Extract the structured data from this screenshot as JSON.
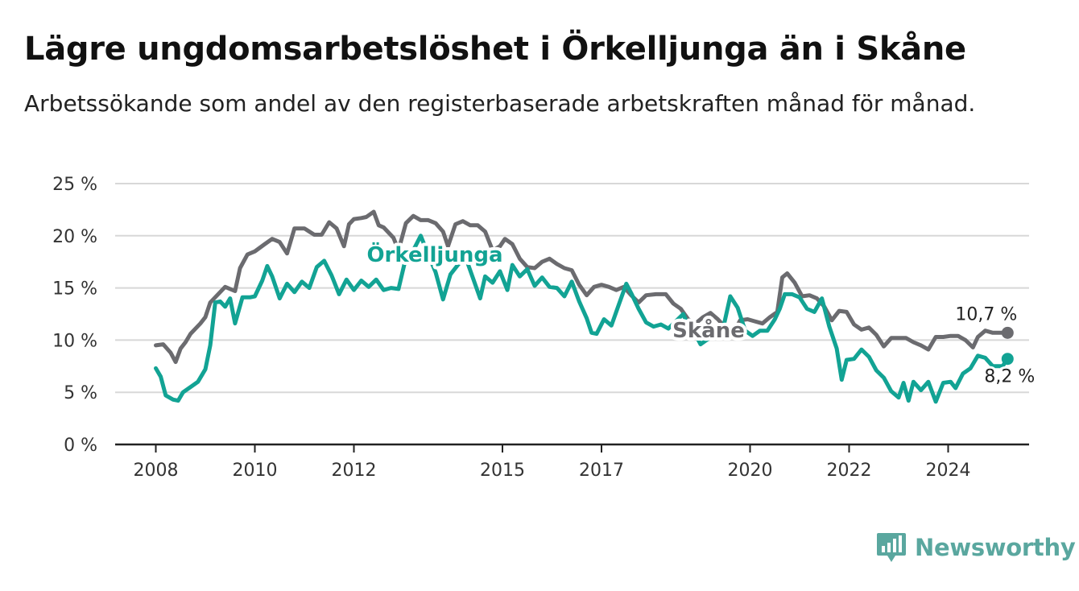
{
  "title": "Lägre ungdomsarbetslöshet i Örkelljunga än i Skåne",
  "subtitle": "Arbetssökande som andel av den registerbaserade arbetskraften månad för månad.",
  "brand": "Newsworthy",
  "colors": {
    "skane": "#6b6b6f",
    "orkelljunga": "#12a394",
    "grid": "#d8d8d8",
    "axis": "#222222",
    "brand": "#5aa79f"
  },
  "chart_data": {
    "type": "line",
    "y_ticks": [
      "0 %",
      "5 %",
      "10 %",
      "15 %",
      "20 %",
      "25 %"
    ],
    "ylim": [
      0,
      25
    ],
    "xlim": [
      2008,
      2025.7
    ],
    "x_ticks": [
      {
        "label": "2008",
        "value": 2008.0
      },
      {
        "label": "2010",
        "value": 2010.0
      },
      {
        "label": "2012",
        "value": 2012.0
      },
      {
        "label": "2015",
        "value": 2015.0
      },
      {
        "label": "2017",
        "value": 2017.0
      },
      {
        "label": "2020",
        "value": 2020.0
      },
      {
        "label": "2022",
        "value": 2022.0
      },
      {
        "label": "2024",
        "value": 2024.0
      }
    ],
    "grid": true,
    "series": [
      {
        "name": "Skåne",
        "end_label": "10,7 %",
        "points": [
          [
            2008.0,
            9.5
          ],
          [
            2008.15,
            9.6
          ],
          [
            2008.3,
            8.8
          ],
          [
            2008.4,
            7.9
          ],
          [
            2008.5,
            9.2
          ],
          [
            2008.6,
            9.8
          ],
          [
            2008.7,
            10.6
          ],
          [
            2008.9,
            11.6
          ],
          [
            2009.0,
            12.2
          ],
          [
            2009.1,
            13.6
          ],
          [
            2009.3,
            14.6
          ],
          [
            2009.4,
            15.1
          ],
          [
            2009.6,
            14.7
          ],
          [
            2009.7,
            16.9
          ],
          [
            2009.85,
            18.2
          ],
          [
            2010.0,
            18.5
          ],
          [
            2010.2,
            19.2
          ],
          [
            2010.35,
            19.7
          ],
          [
            2010.5,
            19.4
          ],
          [
            2010.65,
            18.3
          ],
          [
            2010.8,
            20.7
          ],
          [
            2011.0,
            20.7
          ],
          [
            2011.2,
            20.1
          ],
          [
            2011.35,
            20.1
          ],
          [
            2011.5,
            21.3
          ],
          [
            2011.65,
            20.7
          ],
          [
            2011.8,
            19.0
          ],
          [
            2011.9,
            21.1
          ],
          [
            2012.0,
            21.6
          ],
          [
            2012.15,
            21.7
          ],
          [
            2012.25,
            21.8
          ],
          [
            2012.4,
            22.3
          ],
          [
            2012.5,
            21.0
          ],
          [
            2012.6,
            20.8
          ],
          [
            2012.8,
            19.8
          ],
          [
            2012.9,
            18.6
          ],
          [
            2013.05,
            21.2
          ],
          [
            2013.2,
            21.9
          ],
          [
            2013.35,
            21.5
          ],
          [
            2013.5,
            21.5
          ],
          [
            2013.65,
            21.2
          ],
          [
            2013.8,
            20.4
          ],
          [
            2013.9,
            19.0
          ],
          [
            2014.05,
            21.1
          ],
          [
            2014.2,
            21.4
          ],
          [
            2014.35,
            21.0
          ],
          [
            2014.5,
            21.0
          ],
          [
            2014.65,
            20.4
          ],
          [
            2014.8,
            18.6
          ],
          [
            2014.95,
            19.0
          ],
          [
            2015.05,
            19.7
          ],
          [
            2015.2,
            19.2
          ],
          [
            2015.35,
            17.8
          ],
          [
            2015.5,
            17.0
          ],
          [
            2015.65,
            16.9
          ],
          [
            2015.8,
            17.5
          ],
          [
            2015.95,
            17.8
          ],
          [
            2016.1,
            17.3
          ],
          [
            2016.25,
            16.9
          ],
          [
            2016.4,
            16.7
          ],
          [
            2016.55,
            15.3
          ],
          [
            2016.7,
            14.3
          ],
          [
            2016.85,
            15.1
          ],
          [
            2017.0,
            15.3
          ],
          [
            2017.15,
            15.1
          ],
          [
            2017.3,
            14.8
          ],
          [
            2017.45,
            15.1
          ],
          [
            2017.6,
            14.3
          ],
          [
            2017.75,
            13.6
          ],
          [
            2017.9,
            14.3
          ],
          [
            2018.1,
            14.4
          ],
          [
            2018.3,
            14.4
          ],
          [
            2018.45,
            13.5
          ],
          [
            2018.6,
            13.0
          ],
          [
            2018.75,
            12.0
          ],
          [
            2018.9,
            11.6
          ],
          [
            2019.05,
            12.2
          ],
          [
            2019.2,
            12.6
          ],
          [
            2019.35,
            12.0
          ],
          [
            2019.5,
            11.2
          ],
          [
            2019.65,
            10.6
          ],
          [
            2019.8,
            11.9
          ],
          [
            2019.95,
            12.0
          ],
          [
            2020.1,
            11.8
          ],
          [
            2020.25,
            11.6
          ],
          [
            2020.4,
            12.2
          ],
          [
            2020.55,
            12.7
          ],
          [
            2020.65,
            16.0
          ],
          [
            2020.75,
            16.4
          ],
          [
            2020.9,
            15.5
          ],
          [
            2021.05,
            14.2
          ],
          [
            2021.2,
            14.3
          ],
          [
            2021.35,
            14.0
          ],
          [
            2021.5,
            13.2
          ],
          [
            2021.65,
            11.9
          ],
          [
            2021.8,
            12.8
          ],
          [
            2021.95,
            12.7
          ],
          [
            2022.1,
            11.5
          ],
          [
            2022.25,
            11.0
          ],
          [
            2022.4,
            11.2
          ],
          [
            2022.55,
            10.5
          ],
          [
            2022.7,
            9.4
          ],
          [
            2022.85,
            10.2
          ],
          [
            2023.0,
            10.2
          ],
          [
            2023.15,
            10.2
          ],
          [
            2023.3,
            9.8
          ],
          [
            2023.45,
            9.5
          ],
          [
            2023.6,
            9.1
          ],
          [
            2023.75,
            10.3
          ],
          [
            2023.9,
            10.3
          ],
          [
            2024.05,
            10.4
          ],
          [
            2024.2,
            10.4
          ],
          [
            2024.35,
            10.0
          ],
          [
            2024.5,
            9.3
          ],
          [
            2024.6,
            10.3
          ],
          [
            2024.75,
            10.9
          ],
          [
            2024.9,
            10.7
          ],
          [
            2025.2,
            10.7
          ]
        ]
      },
      {
        "name": "Örkelljunga",
        "end_label": "8,2 %",
        "points": [
          [
            2008.0,
            7.3
          ],
          [
            2008.1,
            6.5
          ],
          [
            2008.2,
            4.7
          ],
          [
            2008.35,
            4.3
          ],
          [
            2008.45,
            4.2
          ],
          [
            2008.55,
            5.0
          ],
          [
            2008.7,
            5.5
          ],
          [
            2008.85,
            6.0
          ],
          [
            2009.0,
            7.2
          ],
          [
            2009.1,
            9.5
          ],
          [
            2009.2,
            13.6
          ],
          [
            2009.3,
            13.7
          ],
          [
            2009.4,
            13.2
          ],
          [
            2009.5,
            14.0
          ],
          [
            2009.6,
            11.6
          ],
          [
            2009.75,
            14.1
          ],
          [
            2009.9,
            14.1
          ],
          [
            2010.0,
            14.2
          ],
          [
            2010.15,
            15.7
          ],
          [
            2010.25,
            17.1
          ],
          [
            2010.35,
            16.1
          ],
          [
            2010.5,
            14.0
          ],
          [
            2010.65,
            15.4
          ],
          [
            2010.8,
            14.6
          ],
          [
            2010.95,
            15.6
          ],
          [
            2011.1,
            15.0
          ],
          [
            2011.25,
            17.0
          ],
          [
            2011.4,
            17.6
          ],
          [
            2011.55,
            16.2
          ],
          [
            2011.7,
            14.4
          ],
          [
            2011.85,
            15.8
          ],
          [
            2012.0,
            14.8
          ],
          [
            2012.15,
            15.7
          ],
          [
            2012.3,
            15.1
          ],
          [
            2012.45,
            15.8
          ],
          [
            2012.6,
            14.8
          ],
          [
            2012.75,
            15.0
          ],
          [
            2012.9,
            14.9
          ],
          [
            2013.05,
            17.9
          ],
          [
            2013.2,
            18.6
          ],
          [
            2013.35,
            20.0
          ],
          [
            2013.5,
            18.2
          ],
          [
            2013.65,
            16.5
          ],
          [
            2013.8,
            13.9
          ],
          [
            2013.95,
            16.3
          ],
          [
            2014.1,
            17.2
          ],
          [
            2014.25,
            18.0
          ],
          [
            2014.4,
            16.0
          ],
          [
            2014.55,
            14.0
          ],
          [
            2014.65,
            16.1
          ],
          [
            2014.8,
            15.5
          ],
          [
            2014.95,
            16.6
          ],
          [
            2015.1,
            14.8
          ],
          [
            2015.2,
            17.2
          ],
          [
            2015.35,
            16.1
          ],
          [
            2015.5,
            16.8
          ],
          [
            2015.65,
            15.2
          ],
          [
            2015.8,
            16.0
          ],
          [
            2015.95,
            15.1
          ],
          [
            2016.1,
            15.0
          ],
          [
            2016.25,
            14.2
          ],
          [
            2016.4,
            15.6
          ],
          [
            2016.55,
            13.7
          ],
          [
            2016.7,
            12.1
          ],
          [
            2016.8,
            10.7
          ],
          [
            2016.9,
            10.6
          ],
          [
            2017.05,
            12.0
          ],
          [
            2017.2,
            11.4
          ],
          [
            2017.35,
            13.4
          ],
          [
            2017.5,
            15.4
          ],
          [
            2017.6,
            14.5
          ],
          [
            2017.75,
            13.0
          ],
          [
            2017.9,
            11.7
          ],
          [
            2018.05,
            11.3
          ],
          [
            2018.2,
            11.5
          ],
          [
            2018.35,
            11.1
          ],
          [
            2018.5,
            11.8
          ],
          [
            2018.65,
            12.5
          ],
          [
            2018.75,
            11.4
          ],
          [
            2018.9,
            10.5
          ],
          [
            2019.0,
            9.6
          ],
          [
            2019.15,
            10.1
          ],
          [
            2019.3,
            10.3
          ],
          [
            2019.45,
            11.0
          ],
          [
            2019.6,
            14.2
          ],
          [
            2019.75,
            13.1
          ],
          [
            2019.9,
            10.9
          ],
          [
            2020.05,
            10.4
          ],
          [
            2020.2,
            10.9
          ],
          [
            2020.35,
            10.9
          ],
          [
            2020.5,
            12.0
          ],
          [
            2020.6,
            13.0
          ],
          [
            2020.7,
            14.4
          ],
          [
            2020.85,
            14.4
          ],
          [
            2021.0,
            14.1
          ],
          [
            2021.15,
            13.0
          ],
          [
            2021.3,
            12.7
          ],
          [
            2021.45,
            14.0
          ],
          [
            2021.6,
            11.3
          ],
          [
            2021.75,
            9.2
          ],
          [
            2021.85,
            6.2
          ],
          [
            2021.95,
            8.1
          ],
          [
            2022.1,
            8.2
          ],
          [
            2022.25,
            9.1
          ],
          [
            2022.4,
            8.4
          ],
          [
            2022.55,
            7.1
          ],
          [
            2022.7,
            6.4
          ],
          [
            2022.85,
            5.1
          ],
          [
            2023.0,
            4.5
          ],
          [
            2023.1,
            5.9
          ],
          [
            2023.2,
            4.2
          ],
          [
            2023.3,
            6.0
          ],
          [
            2023.45,
            5.2
          ],
          [
            2023.6,
            6.0
          ],
          [
            2023.75,
            4.1
          ],
          [
            2023.9,
            5.9
          ],
          [
            2024.05,
            6.0
          ],
          [
            2024.15,
            5.4
          ],
          [
            2024.3,
            6.8
          ],
          [
            2024.45,
            7.3
          ],
          [
            2024.6,
            8.5
          ],
          [
            2024.75,
            8.3
          ],
          [
            2024.9,
            7.5
          ],
          [
            2025.1,
            7.5
          ],
          [
            2025.2,
            8.2
          ]
        ]
      }
    ]
  }
}
